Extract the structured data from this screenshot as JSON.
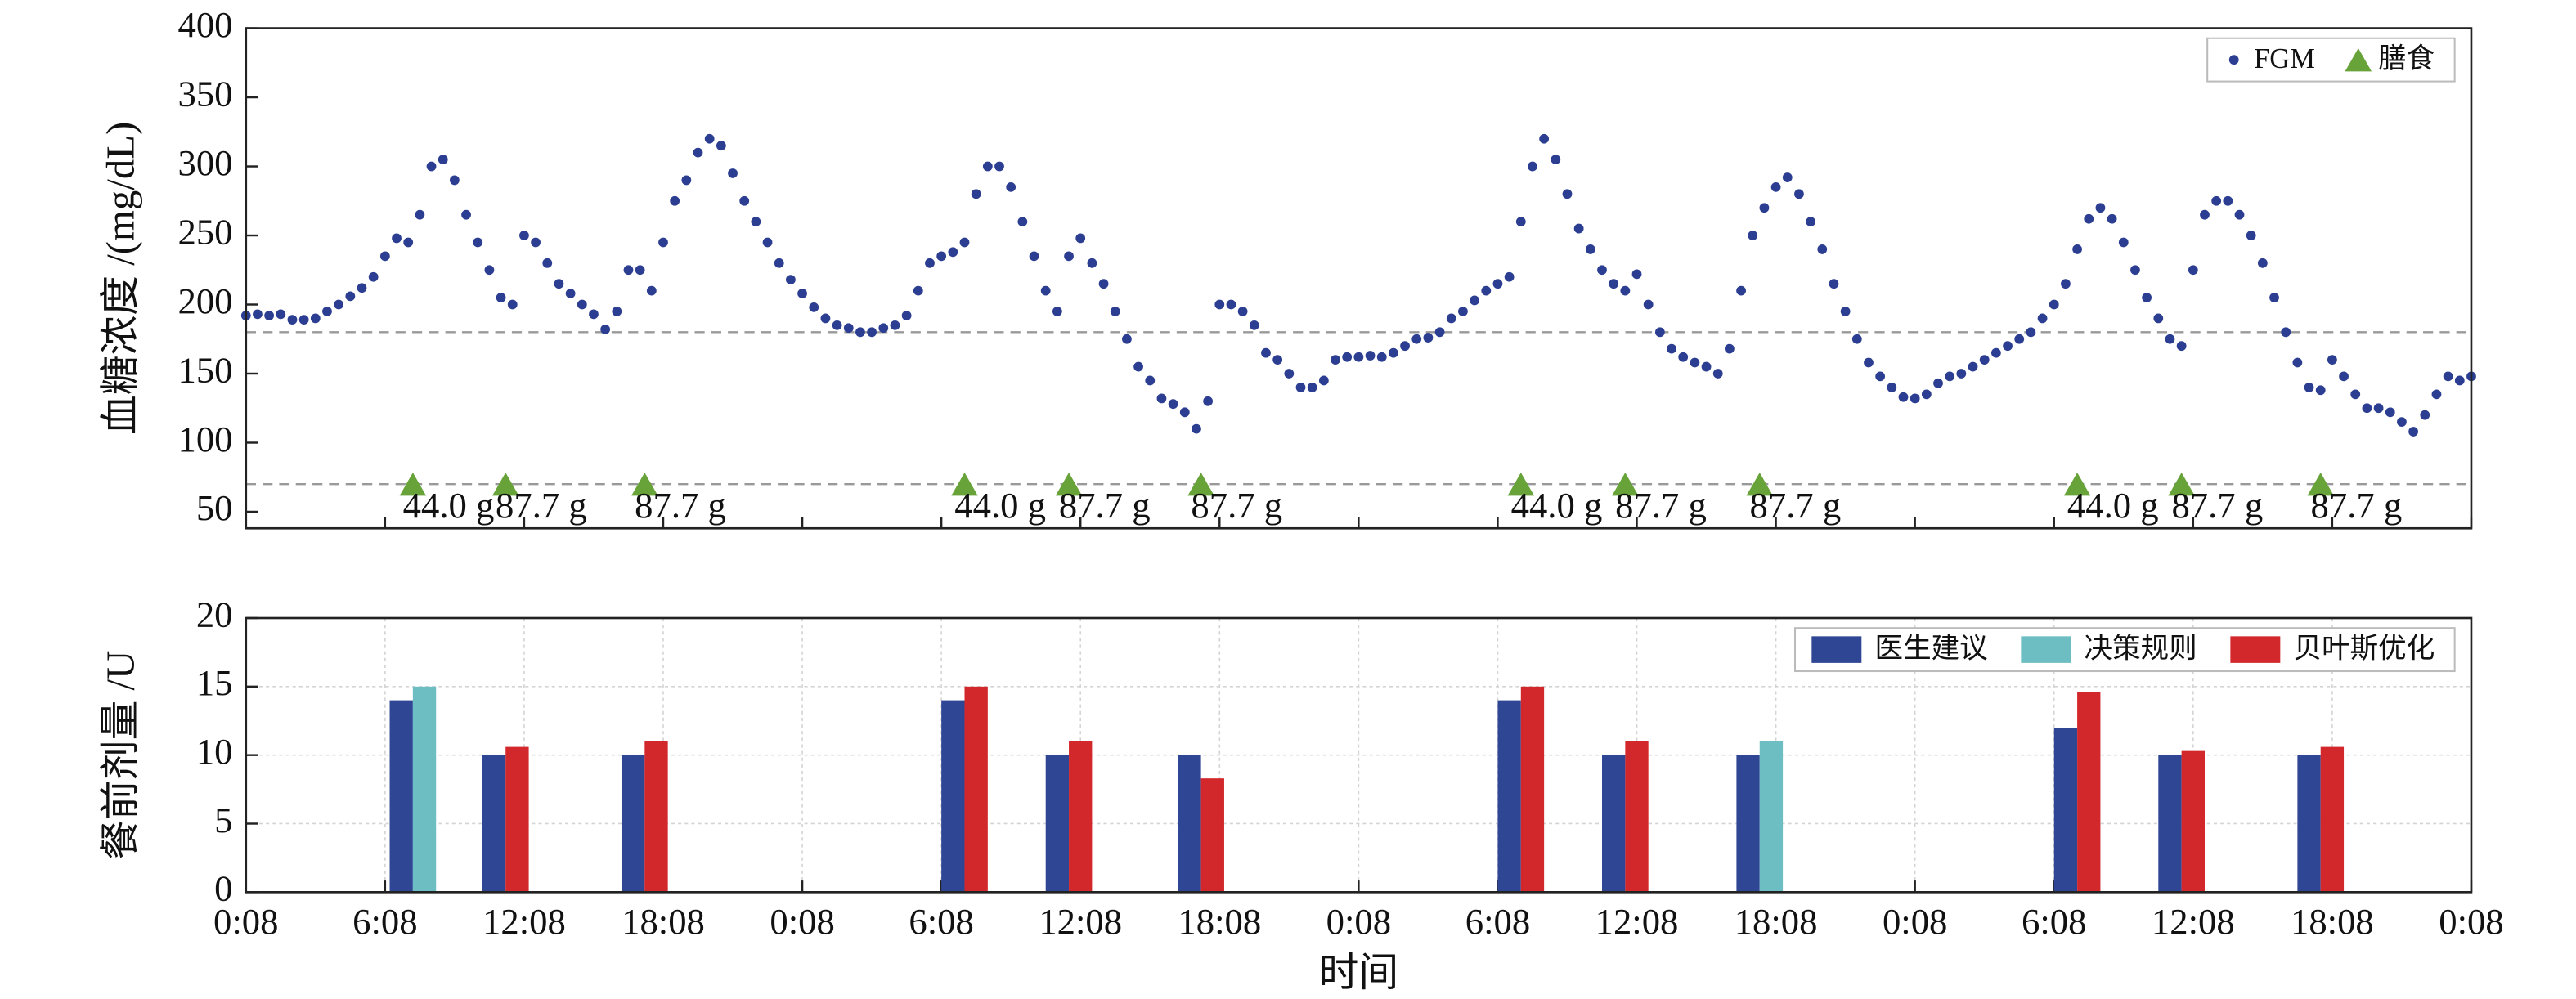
{
  "chart_data": [
    {
      "type": "scatter",
      "ylabel": "血糖浓度 /(mg/dL)",
      "xlim": [
        0,
        96
      ],
      "xticks": [
        0,
        6,
        12,
        18,
        24,
        30,
        36,
        42,
        48,
        54,
        60,
        66,
        72,
        78,
        84,
        90,
        96
      ],
      "ylim": [
        38,
        400
      ],
      "yticks": [
        50,
        100,
        150,
        200,
        250,
        300,
        350,
        400
      ],
      "hlines": [
        180,
        70
      ],
      "legend": "upper right",
      "series": [
        {
          "name": "FGM",
          "color": "#2c3e91",
          "marker": "circle",
          "x": [
            0,
            0.5,
            1,
            1.5,
            2,
            2.5,
            3,
            3.5,
            4,
            4.5,
            5,
            5.5,
            6,
            6.5,
            7,
            7.5,
            8,
            8.5,
            9,
            9.5,
            10,
            10.5,
            11,
            11.5,
            12,
            12.5,
            13,
            13.5,
            14,
            14.5,
            15,
            15.5,
            16,
            16.5,
            17,
            17.5,
            18,
            18.5,
            19,
            19.5,
            20,
            20.5,
            21,
            21.5,
            22,
            22.5,
            23,
            23.5,
            24,
            24.5,
            25,
            25.5,
            26,
            26.5,
            27,
            27.5,
            28,
            28.5,
            29,
            29.5,
            30,
            30.5,
            31,
            31.5,
            32,
            32.5,
            33,
            33.5,
            34,
            34.5,
            35,
            35.5,
            36,
            36.5,
            37,
            37.5,
            38,
            38.5,
            39,
            39.5,
            40,
            40.5,
            41,
            41.5,
            42,
            42.5,
            43,
            43.5,
            44,
            44.5,
            45,
            45.5,
            46,
            46.5,
            47,
            47.5,
            48,
            48.5,
            49,
            49.5,
            50,
            50.5,
            51,
            51.5,
            52,
            52.5,
            53,
            53.5,
            54,
            54.5,
            55,
            55.5,
            56,
            56.5,
            57,
            57.5,
            58,
            58.5,
            59,
            59.5,
            60,
            60.5,
            61,
            61.5,
            62,
            62.5,
            63,
            63.5,
            64,
            64.5,
            65,
            65.5,
            66,
            66.5,
            67,
            67.5,
            68,
            68.5,
            69,
            69.5,
            70,
            70.5,
            71,
            71.5,
            72,
            72.5,
            73,
            73.5,
            74,
            74.5,
            75,
            75.5,
            76,
            76.5,
            77,
            77.5,
            78,
            78.5,
            79,
            79.5,
            80,
            80.5,
            81,
            81.5,
            82,
            82.5,
            83,
            83.5,
            84,
            84.5,
            85,
            85.5,
            86,
            86.5,
            87,
            87.5,
            88,
            88.5,
            89,
            89.5,
            90,
            90.5,
            91,
            91.5,
            92,
            92.5,
            93,
            93.5,
            94,
            94.5,
            95,
            95.5,
            96
          ],
          "values": [
            192,
            193,
            192,
            193,
            189,
            189,
            190,
            195,
            200,
            206,
            212,
            220,
            235,
            248,
            245,
            265,
            300,
            305,
            290,
            265,
            245,
            225,
            205,
            200,
            250,
            245,
            230,
            215,
            208,
            200,
            193,
            182,
            195,
            225,
            225,
            210,
            245,
            275,
            290,
            310,
            320,
            315,
            295,
            275,
            260,
            245,
            230,
            218,
            208,
            198,
            190,
            185,
            183,
            180,
            180,
            183,
            185,
            192,
            210,
            230,
            235,
            238,
            245,
            280,
            300,
            300,
            285,
            260,
            235,
            210,
            195,
            235,
            248,
            230,
            215,
            195,
            175,
            155,
            145,
            132,
            128,
            122,
            110,
            130,
            200,
            200,
            195,
            185,
            165,
            160,
            150,
            140,
            140,
            145,
            160,
            162,
            162,
            163,
            162,
            165,
            170,
            175,
            176,
            180,
            190,
            195,
            203,
            210,
            215,
            220,
            260,
            300,
            320,
            305,
            280,
            255,
            240,
            225,
            215,
            210,
            222,
            200,
            180,
            168,
            162,
            158,
            155,
            150,
            168,
            210,
            250,
            270,
            285,
            292,
            280,
            260,
            240,
            215,
            195,
            175,
            158,
            148,
            140,
            133,
            132,
            135,
            143,
            148,
            150,
            155,
            160,
            165,
            170,
            175,
            180,
            190,
            200,
            215,
            240,
            262,
            270,
            262,
            245,
            225,
            205,
            190,
            175,
            170,
            225,
            265,
            275,
            275,
            265,
            250,
            230,
            205,
            180,
            158,
            140,
            138,
            160,
            148,
            135,
            125,
            125,
            122,
            115,
            108,
            120,
            135,
            148,
            145,
            148
          ]
        },
        {
          "name": "膳食",
          "color": "#68a33a",
          "marker": "triangle",
          "x": [
            7.2,
            11.2,
            17.2,
            31,
            35.5,
            41.2,
            55,
            59.5,
            65.3,
            79,
            83.5,
            89.5
          ],
          "values": [
            70,
            70,
            70,
            70,
            70,
            70,
            70,
            70,
            70,
            70,
            70,
            70
          ],
          "annotations": [
            "44.0 g",
            "87.7 g",
            "87.7 g",
            "44.0 g",
            "87.7 g",
            "87.7 g",
            "44.0 g",
            "87.7 g",
            "87.7 g",
            "44.0 g",
            "87.7 g",
            "87.7 g"
          ]
        }
      ]
    },
    {
      "type": "bar",
      "ylabel": "餐前剂量 /U",
      "xlabel": "时间",
      "xlim": [
        0,
        96
      ],
      "xticks": [
        {
          "value": 0,
          "label": "0:08"
        },
        {
          "value": 6,
          "label": "6:08"
        },
        {
          "value": 12,
          "label": "12:08"
        },
        {
          "value": 18,
          "label": "18:08"
        },
        {
          "value": 24,
          "label": "0:08"
        },
        {
          "value": 30,
          "label": "6:08"
        },
        {
          "value": 36,
          "label": "12:08"
        },
        {
          "value": 42,
          "label": "18:08"
        },
        {
          "value": 48,
          "label": "0:08"
        },
        {
          "value": 54,
          "label": "6:08"
        },
        {
          "value": 60,
          "label": "12:08"
        },
        {
          "value": 66,
          "label": "18:08"
        },
        {
          "value": 72,
          "label": "0:08"
        },
        {
          "value": 78,
          "label": "6:08"
        },
        {
          "value": 84,
          "label": "12:08"
        },
        {
          "value": 90,
          "label": "18:08"
        },
        {
          "value": 96,
          "label": "0:08"
        }
      ],
      "ylim": [
        0,
        20
      ],
      "yticks": [
        0,
        5,
        10,
        15,
        20
      ],
      "grid": true,
      "legend": "upper right",
      "x": [
        7.2,
        11.2,
        17.2,
        31,
        35.5,
        41.2,
        55,
        59.5,
        65.3,
        79,
        83.5,
        89.5
      ],
      "series": [
        {
          "name": "医生建议",
          "color": "#2f4695",
          "values": [
            14,
            10,
            10,
            14,
            10,
            10,
            14,
            10,
            10,
            12,
            10,
            10
          ]
        },
        {
          "name": "决策规则",
          "color": "#6cbec3",
          "values": [
            15,
            null,
            null,
            null,
            null,
            null,
            null,
            null,
            11,
            null,
            null,
            null
          ]
        },
        {
          "name": "贝叶斯优化",
          "color": "#d3282b",
          "values": [
            null,
            10.6,
            11,
            15,
            11,
            8.3,
            15,
            11,
            null,
            14.6,
            10.3,
            10.6
          ]
        }
      ]
    }
  ]
}
